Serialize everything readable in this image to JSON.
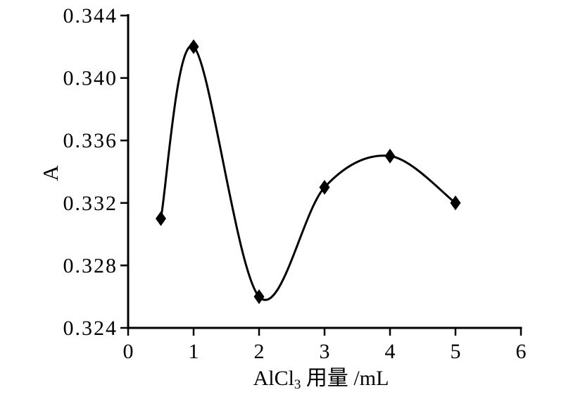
{
  "figure": {
    "background": "#ffffff",
    "ink_color": "#000000"
  },
  "chart_data": {
    "type": "line",
    "title": "",
    "xlabel": "AlCl₃ 用量 /mL",
    "xlabel_parts": {
      "base": "AlCl",
      "sub": "3",
      "rest": " 用量 /mL"
    },
    "ylabel": "A",
    "x": [
      0.5,
      1,
      2,
      3,
      4,
      5
    ],
    "y": [
      0.331,
      0.342,
      0.326,
      0.333,
      0.335,
      0.332
    ],
    "xlim": [
      0,
      6
    ],
    "ylim": [
      0.324,
      0.344
    ],
    "x_tick_values": [
      0,
      1,
      2,
      3,
      4,
      5,
      6
    ],
    "x_tick_labels": [
      "0",
      "1",
      "2",
      "3",
      "4",
      "5",
      "6"
    ],
    "y_tick_values": [
      0.324,
      0.328,
      0.332,
      0.336,
      0.34,
      0.344
    ],
    "y_tick_labels": [
      "0.324",
      "0.328",
      "0.332",
      "0.336",
      "0.340",
      "0.344"
    ],
    "grid": false,
    "legend": "none",
    "line_style": "smooth",
    "marker": "diamond",
    "line_color": "#000000",
    "marker_color": "#000000"
  }
}
